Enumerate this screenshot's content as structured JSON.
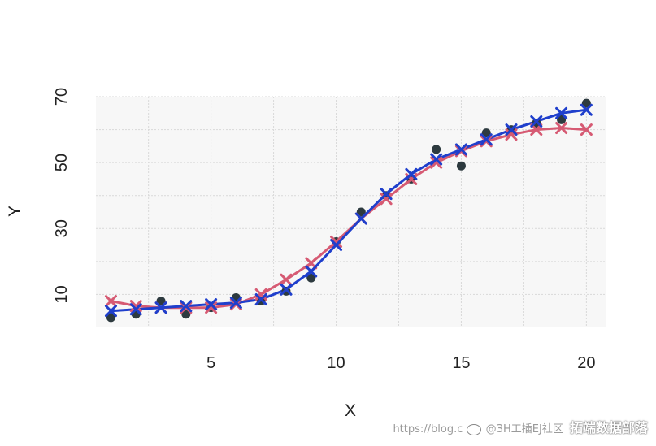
{
  "chart_data": {
    "type": "scatter",
    "title": "",
    "xlabel": "X",
    "ylabel": "Y",
    "xlim": [
      0.4,
      20.8
    ],
    "ylim": [
      0,
      70
    ],
    "x_ticks": [
      5,
      10,
      15,
      20
    ],
    "y_ticks": [
      10,
      30,
      50,
      70
    ],
    "grid": true,
    "points": {
      "x": [
        1,
        2,
        3,
        4,
        5,
        6,
        7,
        8,
        9,
        10,
        11,
        12,
        13,
        14,
        15,
        16,
        17,
        18,
        19,
        20
      ],
      "y": [
        3,
        4,
        8,
        4,
        6,
        9,
        8,
        11,
        15,
        26,
        35,
        40,
        45,
        54,
        49,
        59,
        60,
        62,
        63,
        68
      ]
    },
    "series": [
      {
        "color": "#d65a73",
        "marker": "x",
        "x": [
          1,
          2,
          3,
          4,
          5,
          6,
          7,
          8,
          9,
          10,
          11,
          12,
          13,
          14,
          15,
          16,
          17,
          18,
          19,
          20
        ],
        "y": [
          8,
          6.5,
          6,
          6,
          6,
          7,
          10,
          14.5,
          19.5,
          26,
          33,
          39,
          45,
          50,
          53.5,
          56.5,
          58.5,
          60,
          60.5,
          60
        ]
      },
      {
        "color": "#1f3fcc",
        "marker": "x",
        "x": [
          1,
          2,
          3,
          4,
          5,
          6,
          7,
          8,
          9,
          10,
          11,
          12,
          13,
          14,
          15,
          16,
          17,
          18,
          19,
          20
        ],
        "y": [
          5,
          5.5,
          6,
          6.5,
          7,
          7.5,
          8.5,
          11.5,
          17,
          25,
          33,
          40.5,
          46.5,
          51,
          54,
          57,
          60,
          62.5,
          65,
          66
        ]
      }
    ],
    "colors": {
      "points": "#2d3a3f",
      "panel": "#f7f7f7",
      "grid": "#d9d9d9"
    }
  },
  "watermark": {
    "url_text": "https://blog.c",
    "handle_text": "@ЗН工插EJ社区",
    "brand": "拓端数据部落"
  }
}
